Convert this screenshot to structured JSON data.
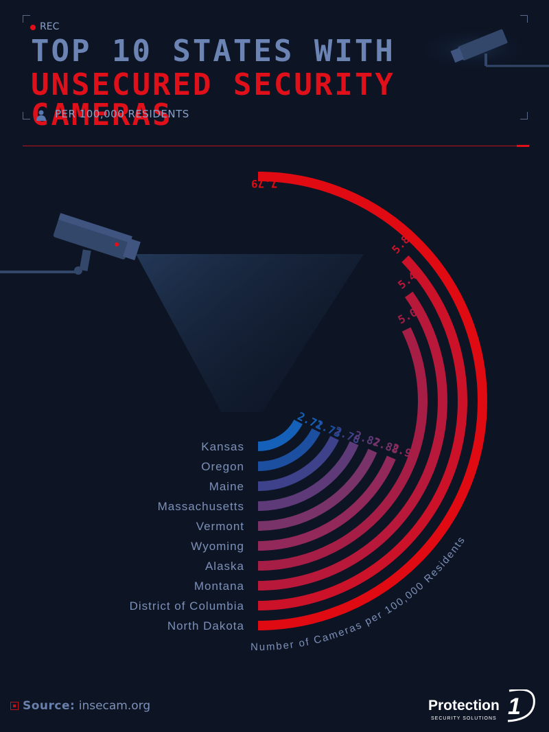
{
  "rec_label": "REC",
  "header": {
    "title_line1": "TOP 10 STATES WITH",
    "title_line2": "UNSECURED SECURITY CAMERAS",
    "subtitle": "PER 100,000 RESIDENTS"
  },
  "colors": {
    "background": "#0d1525",
    "accent_red": "#e0101a",
    "title_blue": "#6c84b4",
    "label_blue": "#7d90b8"
  },
  "icons": [
    "rec-dot-icon",
    "person-icon",
    "security-camera-icon",
    "source-icon"
  ],
  "chart_data": {
    "type": "radial-bar",
    "title": "TOP 10 STATES WITH UNSECURED SECURITY CAMERAS",
    "subtitle": "PER 100,000 RESIDENTS",
    "axis_label": "Number of Cameras per 100,000 Residents",
    "categories": [
      "Kansas",
      "Oregon",
      "Maine",
      "Massachusetts",
      "Vermont",
      "Wyoming",
      "Alaska",
      "Montana",
      "District of Columbia",
      "North Dakota"
    ],
    "values": [
      2.71,
      2.73,
      2.78,
      2.87,
      2.88,
      2.9,
      5.01,
      5.42,
      5.8,
      7.79
    ],
    "value_labels": [
      "2.71",
      "2.73",
      "2.78",
      "2.87",
      "2.88",
      "2.90",
      "5.01",
      "5.42",
      "5.80",
      "7.79"
    ],
    "bar_colors": [
      "#1560b8",
      "#1d4fa0",
      "#3d428a",
      "#5e3a78",
      "#7a3368",
      "#93285a",
      "#a61e46",
      "#b8183a",
      "#cc1228",
      "#e00a12"
    ]
  },
  "source": {
    "label": "Source:",
    "value": "insecam.org"
  },
  "logo": {
    "name": "Protection",
    "numeral": "1",
    "tagline": "SECURITY SOLUTIONS"
  }
}
